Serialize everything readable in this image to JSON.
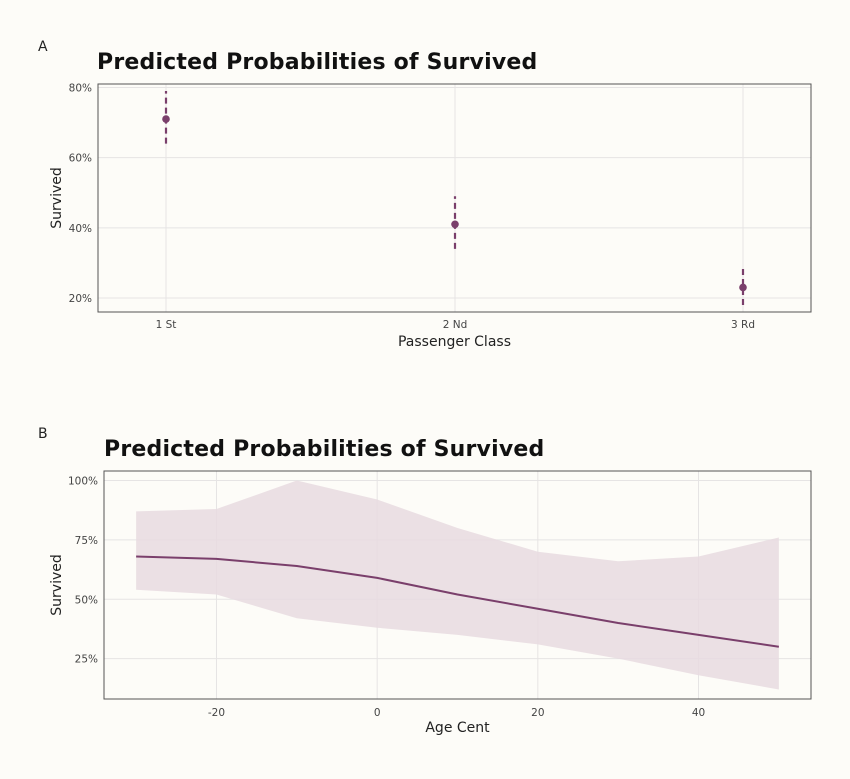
{
  "panels": [
    {
      "label": "A"
    },
    {
      "label": "B"
    }
  ],
  "colors": {
    "series": "#7a3f6b",
    "ribbon": "#e7dbe1",
    "grid": "#e6e4e4",
    "frame": "#555555",
    "background": "#fdfcf8"
  },
  "chart_data": [
    {
      "type": "scatter",
      "title": "Predicted Probabilities of Survived",
      "xlabel": "Passenger Class",
      "ylabel": "Survived",
      "categories": [
        "1 St",
        "2 Nd",
        "3 Rd"
      ],
      "values": [
        0.71,
        0.41,
        0.23
      ],
      "ci_low": [
        0.64,
        0.34,
        0.18
      ],
      "ci_high": [
        0.79,
        0.49,
        0.29
      ],
      "error_style": "dashed",
      "ylim": [
        0.16,
        0.81
      ],
      "yticks": [
        0.2,
        0.4,
        0.6,
        0.8
      ],
      "ytick_labels": [
        "20%",
        "40%",
        "60%",
        "80%"
      ],
      "grid": true,
      "legend": "none"
    },
    {
      "type": "line",
      "title": "Predicted Probabilities of Survived",
      "xlabel": "Age Cent",
      "ylabel": "Survived",
      "x": [
        -30,
        -20,
        -10,
        0,
        10,
        20,
        30,
        40,
        50
      ],
      "y": [
        0.68,
        0.67,
        0.64,
        0.59,
        0.52,
        0.46,
        0.4,
        0.35,
        0.3
      ],
      "ci_low": [
        0.54,
        0.52,
        0.42,
        0.38,
        0.35,
        0.31,
        0.25,
        0.18,
        0.12
      ],
      "ci_high": [
        0.87,
        0.88,
        1.0,
        0.92,
        0.8,
        0.7,
        0.66,
        0.68,
        0.76
      ],
      "xlim": [
        -34,
        54
      ],
      "ylim": [
        0.08,
        1.04
      ],
      "xticks": [
        -20,
        0,
        20,
        40
      ],
      "xtick_labels": [
        "-20",
        "0",
        "20",
        "40"
      ],
      "yticks": [
        0.25,
        0.5,
        0.75,
        1.0
      ],
      "ytick_labels": [
        "25%",
        "50%",
        "75%",
        "100%"
      ],
      "grid": true,
      "legend": "none"
    }
  ]
}
